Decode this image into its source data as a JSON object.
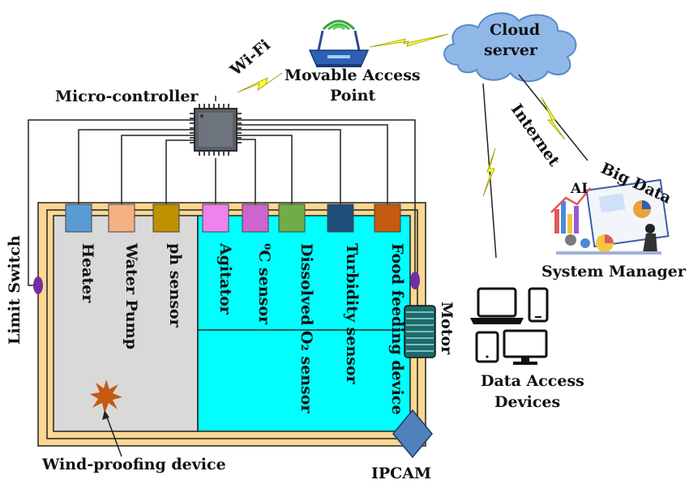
{
  "labels": {
    "microcontroller": "Micro-controller",
    "wifi": "Wi-Fi",
    "access_point_line1": "Movable Access",
    "access_point_line2": "Point",
    "cloud_line1": "Cloud",
    "cloud_line2": "server",
    "internet": "Internet",
    "ai": "AI",
    "big_data": "Big Data",
    "system_manager": "System Manager",
    "data_access_line1": "Data Access",
    "data_access_line2": "Devices",
    "limit_switch": "Limit Switch",
    "motor": "Motor",
    "wind_proofing": "Wind-proofing device",
    "ipcam": "IPCAM"
  },
  "sensors": [
    {
      "label": "Heater",
      "color": "#5b9bd5"
    },
    {
      "label": "Water Pump",
      "color": "#f4b183"
    },
    {
      "label": "ph sensor",
      "color": "#bf9000"
    },
    {
      "label": "Agitator",
      "color": "#ee82ee"
    },
    {
      "label": "⁰C sensor",
      "color": "#cc66cc"
    },
    {
      "label": "Dissolved O₂ sensor",
      "color": "#70ad47"
    },
    {
      "label": "Turbidity sensor",
      "color": "#1f4e79"
    },
    {
      "label": "Food feeding device",
      "color": "#c55a11"
    }
  ],
  "colors": {
    "frame": "#fbd792",
    "tank_gray": "#d9d9d9",
    "water": "#00ffff",
    "cloud": "#8fb8e8",
    "motor": "#1d6a6a",
    "ipcam": "#4f81bd",
    "switch": "#7030a0",
    "lightning": "#ffff33",
    "star": "#c55a11"
  },
  "icons": [
    "router-icon",
    "chip-icon",
    "cloud-icon",
    "laptop-icon",
    "phone-icon",
    "tablet-icon",
    "monitor-icon",
    "analytics-icon"
  ]
}
